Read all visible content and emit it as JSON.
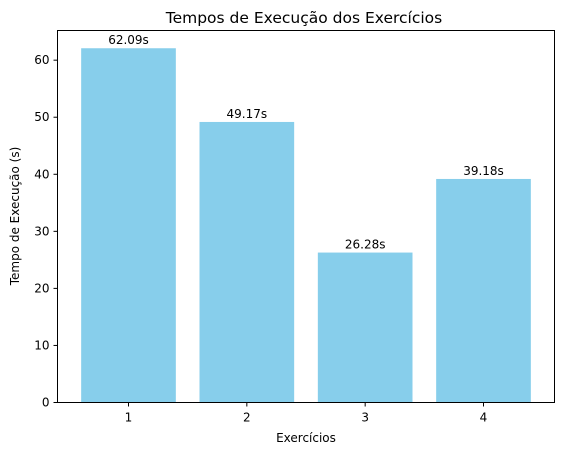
{
  "chart_data": {
    "type": "bar",
    "title": "Tempos de Execução dos Exercícios",
    "xlabel": "Exercícios",
    "ylabel": "Tempo de Execução (s)",
    "categories": [
      "1",
      "2",
      "3",
      "4"
    ],
    "values": [
      62.09,
      49.17,
      26.28,
      39.18
    ],
    "value_labels": [
      "62.09s",
      "49.17s",
      "26.28s",
      "39.18s"
    ],
    "yticks": [
      "0",
      "10",
      "20",
      "30",
      "40",
      "50",
      "60"
    ],
    "ylim": [
      0,
      65.2
    ],
    "grid": false,
    "legend": "none",
    "bar_color": "#87CEEB"
  }
}
